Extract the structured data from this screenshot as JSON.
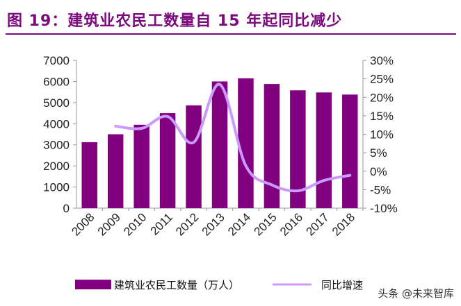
{
  "title": "图 19：建筑业农民工数量自 15 年起同比减少",
  "watermark": "头条 @未来智库",
  "chart_data": {
    "type": "bar",
    "categories": [
      "2008",
      "2009",
      "2010",
      "2011",
      "2012",
      "2013",
      "2014",
      "2015",
      "2016",
      "2017",
      "2018"
    ],
    "series": [
      {
        "name": "建筑业农民工数量（万人）",
        "type": "bar",
        "axis": "left",
        "color": "#800080",
        "values": [
          3125,
          3500,
          3950,
          4500,
          4870,
          6000,
          6150,
          5880,
          5580,
          5480,
          5380
        ]
      },
      {
        "name": "同比增速",
        "type": "line",
        "axis": "right",
        "color": "#cc99ff",
        "values": [
          null,
          12.2,
          11.6,
          14.8,
          7.8,
          23.5,
          1.5,
          -3.7,
          -5.3,
          -2.5,
          -1.1
        ]
      }
    ],
    "y_left": {
      "ylim": [
        0,
        7000
      ],
      "ticks": [
        "0",
        "1000",
        "2000",
        "3000",
        "4000",
        "5000",
        "6000",
        "7000"
      ]
    },
    "y_right": {
      "ylim": [
        -10,
        30
      ],
      "ticks": [
        "-10%",
        "-5%",
        "0%",
        "5%",
        "10%",
        "15%",
        "20%",
        "25%",
        "30%"
      ]
    },
    "grid": false,
    "legend": "bottom"
  }
}
